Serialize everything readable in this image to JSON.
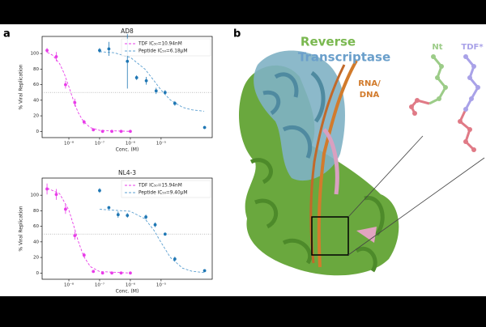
{
  "panel_labels": [
    "a",
    "b"
  ],
  "chart_data": [
    {
      "type": "dose-response",
      "title": "AD8",
      "y_label": "% Viral Replication",
      "x_label": "Conc. (M)",
      "xscale": "log",
      "xlim": [
        1.35e-09,
        0.00046
      ],
      "xticks": [
        {
          "value": 1e-08,
          "label": "10⁻⁸"
        },
        {
          "value": 1e-07,
          "label": "10⁻⁷"
        },
        {
          "value": 1e-06,
          "label": "10⁻⁶"
        },
        {
          "value": 1e-05,
          "label": "10⁻⁵"
        }
      ],
      "ylim": [
        -8,
        122
      ],
      "yticks": [
        0,
        20,
        40,
        60,
        80,
        100
      ],
      "hline": 50,
      "legend": "upper right",
      "series": [
        {
          "name": "TDF IC₅₀=10.94nM",
          "color": "#e83ce8",
          "x": [
            1.95e-09,
            3.9e-09,
            7.8e-09,
            1.56e-08,
            3.13e-08,
            6.25e-08,
            1.25e-07,
            2.5e-07,
            5e-07,
            1e-06
          ],
          "values": [
            104,
            96,
            60,
            37,
            12,
            2,
            0,
            0,
            0,
            0
          ],
          "errors": [
            3,
            6,
            5,
            5,
            3,
            1,
            1,
            1,
            1,
            1
          ],
          "fit": {
            "x": [
              2e-09,
              3e-09,
              5e-09,
              7e-09,
              1e-08,
              1.5e-08,
              2e-08,
              3e-08,
              5e-08,
              1e-07,
              1e-06
            ],
            "values": [
              101.6,
              97.7,
              87,
              74.7,
              57.5,
              36.7,
              24.4,
              12.4,
              4.8,
              1.3,
              0
            ]
          }
        },
        {
          "name": "Peptide IC₅₀=6.18μM",
          "color": "#1f77b4",
          "fit_color": "#5b9fd0",
          "x": [
            1e-07,
            2e-07,
            8e-07,
            1.6e-06,
            3.3e-06,
            6.9e-06,
            1.35e-05,
            2.8e-05,
            0.00026
          ],
          "values": [
            104,
            106,
            90,
            69,
            65,
            52,
            50,
            36,
            5
          ],
          "errors": [
            3,
            9,
            35,
            3,
            5,
            4,
            3,
            3,
            2
          ],
          "fit": {
            "x": [
              1e-07,
              3e-07,
              1e-06,
              3e-06,
              6.18e-06,
              1e-05,
              2e-05,
              5e-05,
              0.0001,
              0.00025
            ],
            "values": [
              102.4,
              101,
              95.1,
              79.9,
              64,
              53.1,
              40.3,
              30.9,
              27.7,
              25.9
            ]
          }
        }
      ]
    },
    {
      "type": "dose-response",
      "title": "NL4-3",
      "y_label": "% Viral Replication",
      "x_label": "Conc. (M)",
      "xscale": "log",
      "xlim": [
        1.35e-09,
        0.00046
      ],
      "xticks": [
        {
          "value": 1e-08,
          "label": "10⁻⁸"
        },
        {
          "value": 1e-07,
          "label": "10⁻⁷"
        },
        {
          "value": 1e-06,
          "label": "10⁻⁶"
        },
        {
          "value": 1e-05,
          "label": "10⁻⁵"
        }
      ],
      "ylim": [
        -8,
        122
      ],
      "yticks": [
        0,
        20,
        40,
        60,
        80,
        100
      ],
      "hline": 50,
      "legend": "upper right",
      "series": [
        {
          "name": "TDF IC₅₀=15.94nM",
          "color": "#e83ce8",
          "x": [
            1.95e-09,
            3.9e-09,
            7.8e-09,
            1.56e-08,
            3.13e-08,
            6.25e-08,
            1.25e-07,
            2.5e-07,
            5e-07,
            1e-06
          ],
          "values": [
            108,
            101,
            82,
            48,
            23,
            2,
            0,
            0,
            0,
            0
          ],
          "errors": [
            7,
            7,
            6,
            5,
            3,
            1,
            1,
            1,
            1,
            1
          ],
          "fit": {
            "x": [
              2e-09,
              5e-09,
              1e-08,
              1.5e-08,
              2e-08,
              3e-08,
              5e-08,
              1e-07,
              1e-06
            ],
            "values": [
              108.9,
              102,
              80.9,
              58.5,
              41.4,
              21.8,
              8.2,
              1.9,
              0
            ]
          }
        },
        {
          "name": "Peptide IC₅₀=9.40μM",
          "color": "#1f77b4",
          "fit_color": "#5b9fd0",
          "x": [
            1e-07,
            2e-07,
            4e-07,
            8e-07,
            3.2e-06,
            6.4e-06,
            1.35e-05,
            2.8e-05,
            0.00026
          ],
          "values": [
            106,
            84,
            75,
            74,
            72,
            62,
            50,
            18,
            3
          ],
          "errors": [
            3,
            2,
            4,
            3,
            3,
            3,
            2,
            3,
            1
          ],
          "fit": {
            "x": [
              1e-07,
              1e-06,
              3e-06,
              6e-06,
              9.4e-06,
              2e-05,
              5e-05,
              0.0001,
              0.00025
            ],
            "values": [
              81.9,
              79.3,
              69.5,
              54.3,
              41,
              20,
              6.2,
              2.3,
              0.6
            ]
          }
        }
      ]
    }
  ],
  "structure": {
    "protein_line1": "Reverse",
    "protein_line2": "Transcriptase",
    "nucleic_line1": "RNA/",
    "nucleic_line2": "DNA",
    "ligand_nt": "Nt",
    "ligand_tdf": "TDF*"
  }
}
